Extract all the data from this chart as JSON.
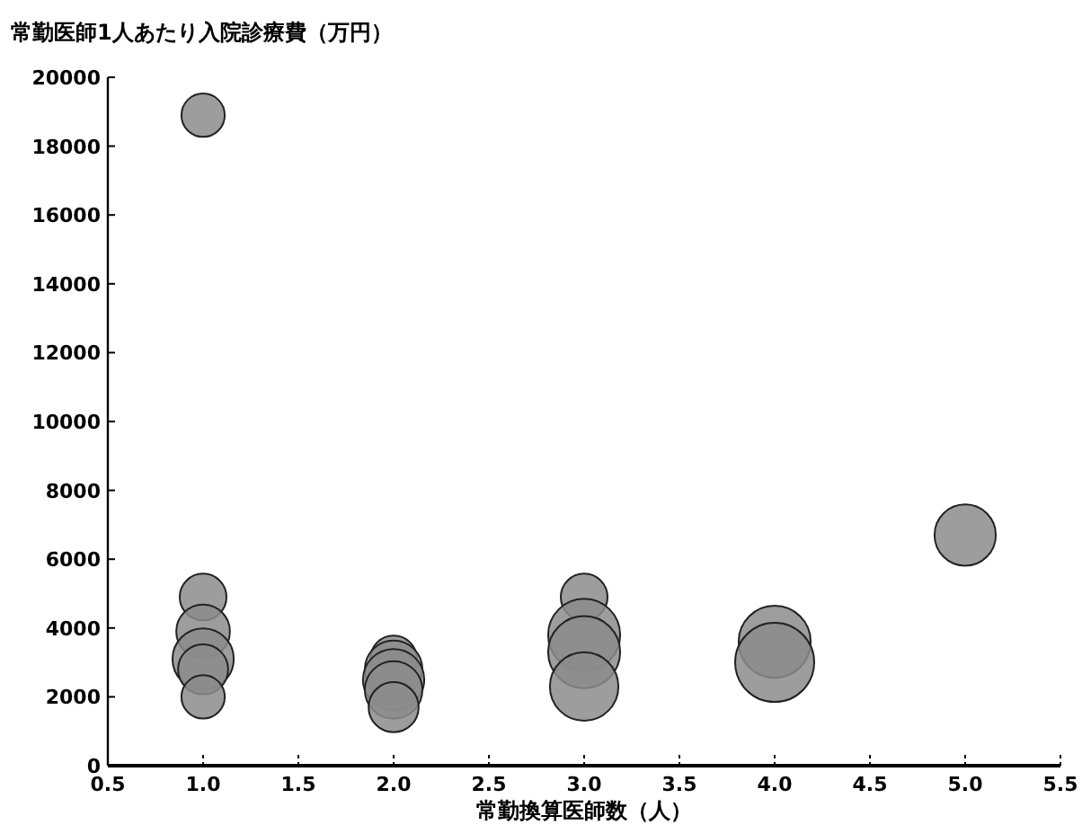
{
  "chart_data": {
    "type": "bubble",
    "ylabel": "常勤医師1人あたり入院診療費（万円）",
    "xlabel": "常勤換算医師数（人）",
    "x": [
      1,
      1,
      1,
      1,
      1,
      1,
      2,
      2,
      2,
      2,
      2,
      3,
      3,
      3,
      3,
      4,
      4,
      5
    ],
    "values": [
      18900,
      4900,
      3900,
      3100,
      2800,
      2000,
      3100,
      2800,
      2500,
      2200,
      1700,
      4900,
      3800,
      3300,
      2300,
      3600,
      3000,
      6700
    ],
    "sizes": [
      0.3,
      0.35,
      0.46,
      0.6,
      0.4,
      0.3,
      0.35,
      0.53,
      0.6,
      0.53,
      0.4,
      0.35,
      0.83,
      0.83,
      0.75,
      0.83,
      1,
      0.6
    ],
    "color": "#8c8c8c",
    "xlim": [
      0.5,
      5.5
    ],
    "xticks": [
      {
        "value": 0.5,
        "label": "0.5"
      },
      {
        "value": 1,
        "label": "1.0"
      },
      {
        "value": 1.5,
        "label": "1.5"
      },
      {
        "value": 2,
        "label": "2.0"
      },
      {
        "value": 2.5,
        "label": "2.5"
      },
      {
        "value": 3,
        "label": "3.0"
      },
      {
        "value": 3.5,
        "label": "3.5"
      },
      {
        "value": 4,
        "label": "4.0"
      },
      {
        "value": 4.5,
        "label": "4.5"
      },
      {
        "value": 5,
        "label": "5.0"
      },
      {
        "value": 5.5,
        "label": "5.5"
      }
    ],
    "ylim": [
      0,
      20000
    ],
    "yticks": [
      0,
      2000,
      4000,
      6000,
      8000,
      10000,
      12000,
      14000,
      16000,
      18000,
      20000
    ],
    "grid": false
  }
}
